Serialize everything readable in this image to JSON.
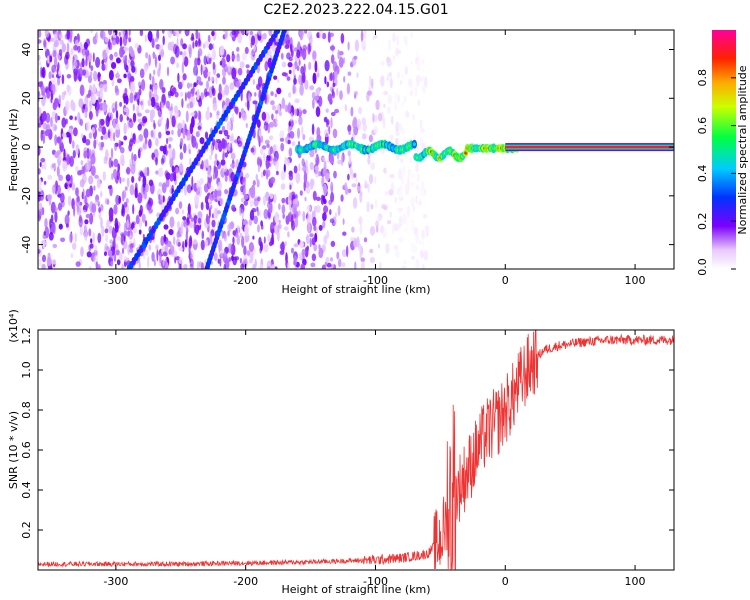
{
  "title": "C2E2.2023.222.04.15.G01",
  "chart_data": [
    {
      "type": "heatmap",
      "xlabel": "Height of straight line (km)",
      "ylabel": "Frequency (Hz)",
      "xlim": [
        -360,
        130
      ],
      "ylim": [
        -50,
        48
      ],
      "xticks": [
        -300,
        -200,
        -100,
        0,
        100
      ],
      "xtick_labels": [
        "-300",
        "-200",
        "-100",
        "0",
        "100"
      ],
      "yticks": [
        -40,
        -20,
        0,
        20,
        40
      ],
      "ytick_labels": [
        "-40",
        "-20",
        "0",
        "20",
        "40"
      ],
      "colorbar": {
        "label": "Normalized spectral amplitude",
        "range": [
          0,
          1
        ],
        "ticks": [
          0,
          0.2,
          0.4,
          0.6,
          0.8
        ],
        "tick_labels": [
          "0.0",
          "0.2",
          "0.4",
          "0.6",
          "0.8"
        ],
        "colormap": "rainbow (white, purple, blue, cyan, green, yellow, orange, red, magenta)"
      },
      "features": {
        "carrier_line": {
          "frequency_hz": 0,
          "x_range": [
            -160,
            130
          ],
          "amplitude": 1.0
        },
        "diagonal_traces": [
          {
            "x_at_-50hz": -290,
            "x_at_48hz": -175
          },
          {
            "x_at_-50hz": -230,
            "x_at_48hz": -170
          }
        ],
        "noise_region_x": [
          -360,
          -75
        ]
      }
    },
    {
      "type": "line",
      "xlabel": "Height of straight line (km)",
      "ylabel": "SNR (10 * v/v)",
      "y_multiplier": "(x10⁴)",
      "xlim": [
        -360,
        130
      ],
      "ylim": [
        0,
        1.2
      ],
      "xticks": [
        -300,
        -200,
        -100,
        0,
        100
      ],
      "xtick_labels": [
        "-300",
        "-200",
        "-100",
        "0",
        "100"
      ],
      "yticks": [
        0.2,
        0.4,
        0.6,
        0.8,
        1.0,
        1.2
      ],
      "ytick_labels": [
        "0.2",
        "0.4",
        "0.6",
        "0.8",
        "1.0",
        "1.2"
      ],
      "series": [
        {
          "color": "#ee3333",
          "x": [
            -360,
            -300,
            -250,
            -200,
            -150,
            -100,
            -80,
            -60,
            -50,
            -45,
            -40,
            -35,
            -30,
            -25,
            -20,
            -15,
            -10,
            -5,
            0,
            5,
            10,
            15,
            20,
            25,
            30,
            40,
            60,
            80,
            100,
            130
          ],
          "values": [
            0.03,
            0.03,
            0.03,
            0.035,
            0.04,
            0.05,
            0.06,
            0.08,
            0.15,
            0.25,
            0.35,
            0.42,
            0.48,
            0.55,
            0.62,
            0.68,
            0.72,
            0.75,
            0.8,
            0.85,
            0.92,
            0.98,
            1.03,
            1.07,
            1.1,
            1.12,
            1.14,
            1.15,
            1.15,
            1.15
          ]
        }
      ]
    }
  ]
}
